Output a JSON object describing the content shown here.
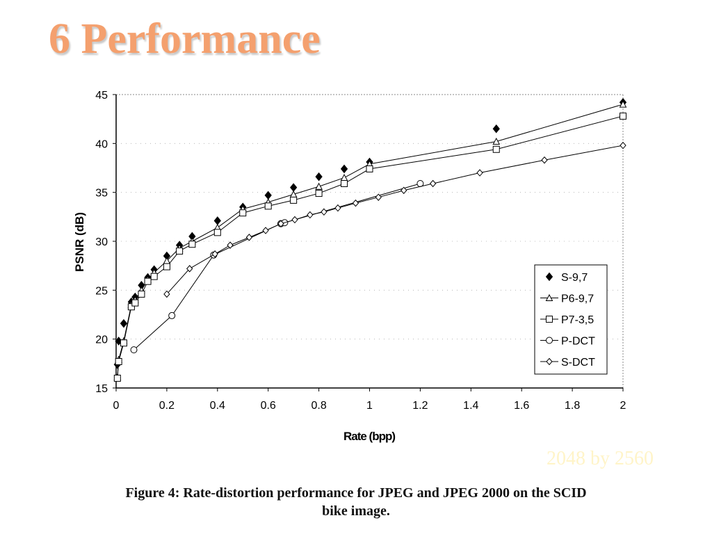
{
  "slide": {
    "title": "6 Performance",
    "caption_line1": "Figure 4: Rate-distortion performance for JPEG and JPEG 2000 on the SCID",
    "caption_line2": "bike image.",
    "watermark": "2048 by 2560"
  },
  "chart_data": {
    "type": "line",
    "title": "",
    "xlabel": "Rate (bpp)",
    "ylabel": "PSNR (dB)",
    "xlim": [
      0,
      2
    ],
    "ylim": [
      15,
      45
    ],
    "xticks": [
      "0",
      "0.2",
      "0.4",
      "0.6",
      "0.8",
      "1",
      "1.2",
      "1.4",
      "1.6",
      "1.8",
      "2"
    ],
    "yticks": [
      "15",
      "20",
      "25",
      "30",
      "35",
      "40",
      "45"
    ],
    "legend_position": "bottom-right",
    "series": [
      {
        "name": "S-9,7",
        "marker": "filled-diamond",
        "line": false,
        "points": [
          [
            0.005,
            17.4
          ],
          [
            0.01,
            19.8
          ],
          [
            0.03,
            21.6
          ],
          [
            0.06,
            23.8
          ],
          [
            0.075,
            24.3
          ],
          [
            0.1,
            25.5
          ],
          [
            0.125,
            26.3
          ],
          [
            0.15,
            27.1
          ],
          [
            0.2,
            28.5
          ],
          [
            0.25,
            29.6
          ],
          [
            0.3,
            30.5
          ],
          [
            0.4,
            32.1
          ],
          [
            0.5,
            33.5
          ],
          [
            0.6,
            34.7
          ],
          [
            0.7,
            35.5
          ],
          [
            0.8,
            36.6
          ],
          [
            0.9,
            37.4
          ],
          [
            1.0,
            38.1
          ],
          [
            1.5,
            41.5
          ],
          [
            2.0,
            44.2
          ]
        ]
      },
      {
        "name": "P6-9,7",
        "marker": "triangle",
        "line": true,
        "points": [
          [
            0.005,
            16.1
          ],
          [
            0.01,
            17.9
          ],
          [
            0.03,
            19.8
          ],
          [
            0.06,
            23.5
          ],
          [
            0.075,
            24.0
          ],
          [
            0.1,
            25.0
          ],
          [
            0.125,
            26.1
          ],
          [
            0.15,
            26.8
          ],
          [
            0.2,
            28.0
          ],
          [
            0.25,
            29.3
          ],
          [
            0.3,
            30.0
          ],
          [
            0.4,
            31.4
          ],
          [
            0.5,
            33.3
          ],
          [
            0.6,
            34.0
          ],
          [
            0.7,
            34.8
          ],
          [
            0.8,
            35.6
          ],
          [
            0.9,
            36.5
          ],
          [
            1.0,
            37.9
          ],
          [
            1.5,
            40.2
          ],
          [
            2.0,
            44.0
          ]
        ]
      },
      {
        "name": "P7-3,5",
        "marker": "square",
        "line": true,
        "points": [
          [
            0.005,
            16.0
          ],
          [
            0.01,
            17.7
          ],
          [
            0.03,
            19.6
          ],
          [
            0.06,
            23.3
          ],
          [
            0.075,
            23.7
          ],
          [
            0.1,
            24.6
          ],
          [
            0.125,
            25.9
          ],
          [
            0.15,
            26.4
          ],
          [
            0.2,
            27.4
          ],
          [
            0.25,
            29.0
          ],
          [
            0.3,
            29.7
          ],
          [
            0.4,
            30.9
          ],
          [
            0.5,
            32.9
          ],
          [
            0.6,
            33.6
          ],
          [
            0.7,
            34.2
          ],
          [
            0.8,
            34.9
          ],
          [
            0.9,
            35.9
          ],
          [
            1.0,
            37.4
          ],
          [
            1.5,
            39.4
          ],
          [
            2.0,
            42.8
          ]
        ]
      },
      {
        "name": "P-DCT",
        "marker": "circle",
        "line": true,
        "points": [
          [
            0.07,
            18.9
          ],
          [
            0.22,
            22.4
          ],
          [
            0.385,
            28.6
          ],
          [
            0.65,
            31.8
          ],
          [
            0.665,
            31.9
          ],
          [
            1.2,
            35.9
          ]
        ]
      },
      {
        "name": "S-DCT",
        "marker": "diamond",
        "line": true,
        "points": [
          [
            0.2,
            24.6
          ],
          [
            0.29,
            27.2
          ],
          [
            0.39,
            28.7
          ],
          [
            0.45,
            29.6
          ],
          [
            0.525,
            30.4
          ],
          [
            0.59,
            31.1
          ],
          [
            0.65,
            31.8
          ],
          [
            0.705,
            32.2
          ],
          [
            0.765,
            32.7
          ],
          [
            0.82,
            33.0
          ],
          [
            0.875,
            33.4
          ],
          [
            0.945,
            33.9
          ],
          [
            1.035,
            34.5
          ],
          [
            1.135,
            35.2
          ],
          [
            1.25,
            35.9
          ],
          [
            1.435,
            37.0
          ],
          [
            1.69,
            38.3
          ],
          [
            2.0,
            39.8
          ]
        ]
      }
    ]
  }
}
